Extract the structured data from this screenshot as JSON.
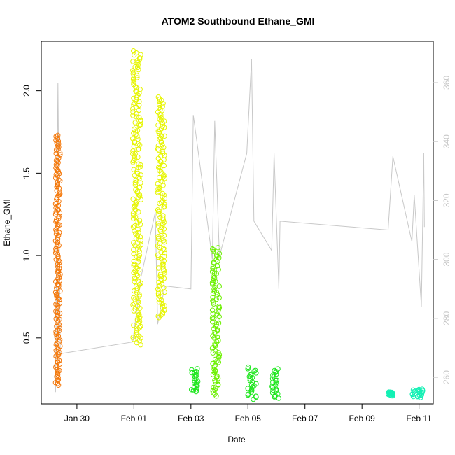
{
  "chart_data": {
    "type": "scatter",
    "title": "ATOM2 Southbound Ethane_GMI",
    "xlabel": "Date",
    "ylabel": "Ethane_GMI",
    "x_ticks": [
      "Jan 30",
      "Feb 01",
      "Feb 03",
      "Feb 05",
      "Feb 07",
      "Feb 09",
      "Feb 11"
    ],
    "x_tick_dates": [
      "2017-01-30",
      "2017-02-01",
      "2017-02-03",
      "2017-02-05",
      "2017-02-07",
      "2017-02-09",
      "2017-02-11"
    ],
    "xlim": [
      "2017-01-28T18:00",
      "2017-02-11T12:00"
    ],
    "y_ticks": [
      0.5,
      1.0,
      1.5,
      2.0
    ],
    "ylim": [
      0.1,
      2.3
    ],
    "y2_ticks": [
      260,
      280,
      300,
      320,
      340,
      360
    ],
    "y2lim": [
      251,
      374
    ],
    "colors": {
      "orange": "#f4780a",
      "yellow": "#e6f500",
      "green1": "#6cf000",
      "green2": "#1ee61e",
      "teal": "#14f0b4",
      "secondary": "#c8c8c8"
    },
    "series": [
      {
        "segment": 1,
        "color": "#f4780a",
        "x_start": "2017-01-29T06:00",
        "x_end": "2017-01-29T10:00",
        "y_min": 0.21,
        "y_max": 1.73
      },
      {
        "segment": 2,
        "color": "#e6f500",
        "x_start": "2017-01-31T23:00",
        "x_end": "2017-02-01T06:00",
        "y_min": 0.46,
        "y_max": 2.24
      },
      {
        "segment": 3,
        "color": "#e6f500",
        "x_start": "2017-02-01T20:00",
        "x_end": "2017-02-02T02:00",
        "y_min": 0.62,
        "y_max": 1.96
      },
      {
        "segment": 4,
        "color": "#1ee61e",
        "x_start": "2017-02-03T00:00",
        "x_end": "2017-02-03T06:00",
        "y_min": 0.17,
        "y_max": 0.31
      },
      {
        "segment": 5,
        "color": "#6cf000",
        "x_start": "2017-02-03T18:00",
        "x_end": "2017-02-04T00:00",
        "y_min": 0.15,
        "y_max": 1.05
      },
      {
        "segment": 6,
        "color": "#1ee61e",
        "x_start": "2017-02-04T23:00",
        "x_end": "2017-02-05T07:00",
        "y_min": 0.13,
        "y_max": 0.32
      },
      {
        "segment": 7,
        "color": "#1ee61e",
        "x_start": "2017-02-05T20:00",
        "x_end": "2017-02-06T02:00",
        "y_min": 0.13,
        "y_max": 0.31
      },
      {
        "segment": 8,
        "color": "#14f0b4",
        "x_start": "2017-02-09T22:00",
        "x_end": "2017-02-10T02:00",
        "y_min": 0.15,
        "y_max": 0.17
      },
      {
        "segment": 9,
        "color": "#14f0b4",
        "x_start": "2017-02-10T18:00",
        "x_end": "2017-02-11T04:00",
        "y_min": 0.14,
        "y_max": 0.19
      }
    ],
    "secondary_line": {
      "color": "#c8c8c8",
      "points": [
        [
          "2017-01-29T06:00",
          255
        ],
        [
          "2017-01-29T08:00",
          360
        ],
        [
          "2017-01-29T10:00",
          268
        ],
        [
          "2017-01-31T23:00",
          272
        ],
        [
          "2017-02-01T06:00",
          294
        ],
        [
          "2017-02-01T18:00",
          316
        ],
        [
          "2017-02-01T20:00",
          278
        ],
        [
          "2017-02-02T02:00",
          291
        ],
        [
          "2017-02-03T00:00",
          290
        ],
        [
          "2017-02-03T02:00",
          349
        ],
        [
          "2017-02-03T06:00",
          337
        ],
        [
          "2017-02-03T18:00",
          300
        ],
        [
          "2017-02-03T20:00",
          347
        ],
        [
          "2017-02-04T00:00",
          301
        ],
        [
          "2017-02-04T23:00",
          336
        ],
        [
          "2017-02-05T03:00",
          368
        ],
        [
          "2017-02-05T05:00",
          313
        ],
        [
          "2017-02-05T20:00",
          303
        ],
        [
          "2017-02-05T22:00",
          336
        ],
        [
          "2017-02-06T02:00",
          290
        ],
        [
          "2017-02-06T03:00",
          313
        ],
        [
          "2017-02-09T22:00",
          310
        ],
        [
          "2017-02-10T02:00",
          335
        ],
        [
          "2017-02-10T18:00",
          306
        ],
        [
          "2017-02-10T20:00",
          322
        ],
        [
          "2017-02-11T02:00",
          284
        ],
        [
          "2017-02-11T04:00",
          336
        ],
        [
          "2017-02-11T04:30",
          311
        ]
      ]
    }
  }
}
